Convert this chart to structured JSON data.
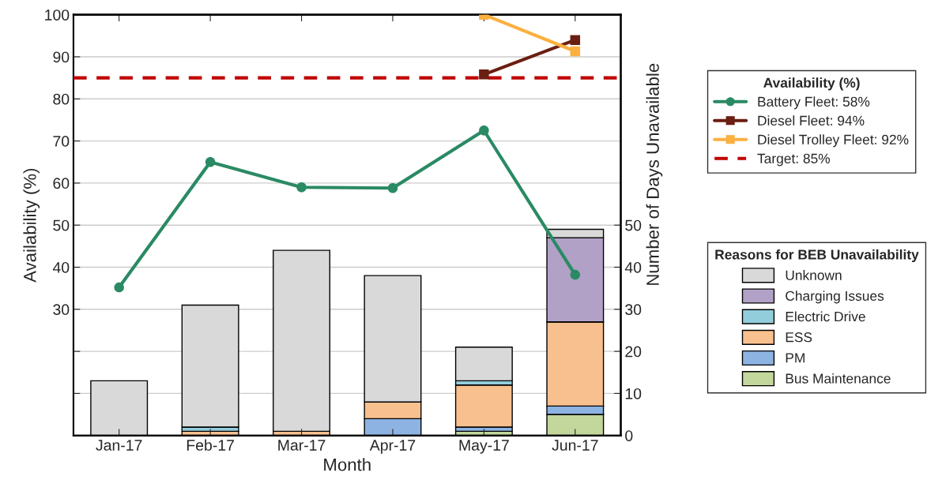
{
  "chart_data": {
    "type": "bar",
    "stacked": true,
    "xlabel": "Month",
    "ylabel": "Availability (%)",
    "y2label": "Number of Days Unavailable",
    "categories": [
      "Jan-17",
      "Feb-17",
      "Mar-17",
      "Apr-17",
      "May-17",
      "Jun-17"
    ],
    "legend_title": [
      "Availability (%)",
      "Reasons for BEB Unavailability"
    ],
    "series": [
      {
        "name": "Battery Fleet: 58%",
        "type": "line",
        "marker": "circle",
        "color": "#2a8a64",
        "values": [
          35.2,
          65,
          59,
          58.8,
          72.5,
          38.2
        ]
      },
      {
        "name": "Diesel Fleet: 94%",
        "type": "line",
        "marker": "square",
        "color": "#6b1e12",
        "values": [
          null,
          null,
          null,
          null,
          85.8,
          94
        ]
      },
      {
        "name": "Diesel Trolley Fleet: 92%",
        "type": "line",
        "marker": "square",
        "color": "#fbb040",
        "values": [
          null,
          null,
          null,
          null,
          100,
          91.3
        ]
      },
      {
        "name": "Bus Maintenance",
        "axis": "y2",
        "color": "#c3d69b",
        "values": [
          0,
          0,
          0,
          0,
          1,
          5
        ]
      },
      {
        "name": "PM",
        "axis": "y2",
        "color": "#8db3e2",
        "values": [
          0,
          0,
          0,
          4,
          1,
          2
        ]
      },
      {
        "name": "ESS",
        "axis": "y2",
        "color": "#f9c08f",
        "values": [
          0,
          1,
          1,
          4,
          10,
          20
        ]
      },
      {
        "name": "Electric Drive",
        "axis": "y2",
        "color": "#92cddc",
        "values": [
          0,
          1,
          0,
          0,
          1,
          0
        ]
      },
      {
        "name": "Charging Issues",
        "axis": "y2",
        "color": "#b1a1c7",
        "values": [
          0,
          0,
          0,
          0,
          0,
          20
        ]
      },
      {
        "name": "Unknown",
        "axis": "y2",
        "color": "#d9d9d9",
        "values": [
          13,
          29,
          43,
          30,
          8,
          2
        ]
      }
    ],
    "ref_lines": [
      {
        "axis": "y",
        "value": 85,
        "label": "Target: 85%",
        "color": "#c00000",
        "line_style": "dashed"
      }
    ],
    "ylim": [
      0,
      100
    ],
    "yticks": [
      {
        "value": 10,
        "label": null
      },
      {
        "value": 20,
        "label": null
      },
      30,
      40,
      50,
      60,
      70,
      80,
      90,
      100
    ],
    "y2lim": [
      0,
      100
    ],
    "y2ticks": [
      0,
      10,
      20,
      30,
      40,
      50
    ],
    "grid": "y",
    "legend": "right"
  }
}
